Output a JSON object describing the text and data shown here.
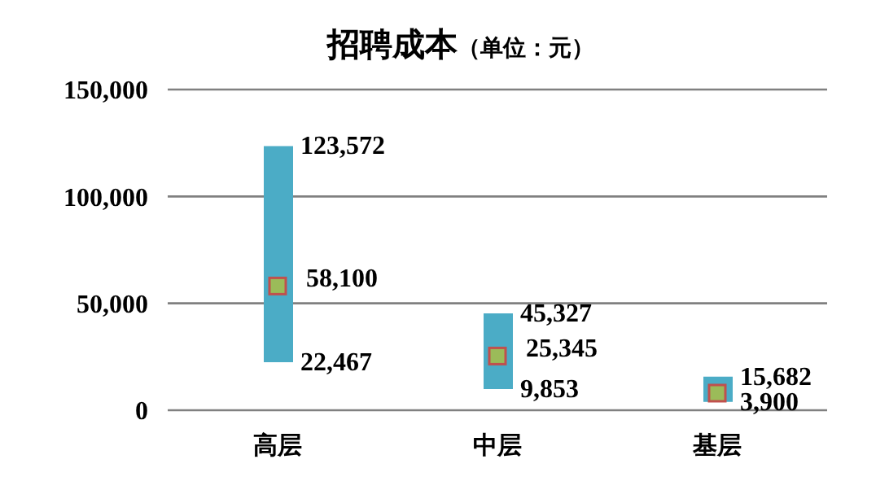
{
  "chart_data": {
    "type": "bar",
    "title": "招聘成本",
    "subtitle": "（单位：元）",
    "categories": [
      "高层",
      "中层",
      "基层"
    ],
    "series": [
      {
        "color": "#4bacc6",
        "base": [
          22467,
          9853,
          3900
        ],
        "values": [
          101105,
          35474,
          11782
        ]
      },
      {
        "type": "scatter",
        "color": "#9bbb59",
        "marker": "square",
        "values": [
          58100,
          25345,
          8000
        ],
        "value_labels": [
          "58,100",
          "25,345",
          null
        ]
      }
    ],
    "ylim": [
      0,
      150000
    ],
    "yticks": [
      {
        "value": 0,
        "label": "0"
      },
      {
        "value": 50000,
        "label": "50,000"
      },
      {
        "value": 100000,
        "label": "100,000"
      },
      {
        "value": 150000,
        "label": "150,000"
      }
    ],
    "grid": "y",
    "legend": false,
    "annotations": [
      {
        "text": "123,572",
        "x": "高层",
        "y": 123572
      },
      {
        "text": "22,467",
        "x": "高层",
        "y": 22467
      },
      {
        "text": "45,327",
        "x": "中层",
        "y": 45327
      },
      {
        "text": "9,853",
        "x": "中层",
        "y": 9853
      },
      {
        "text": "15,682",
        "x": "基层",
        "y": 15682
      },
      {
        "text": "3,900",
        "x": "基层",
        "y": 3900
      }
    ]
  }
}
